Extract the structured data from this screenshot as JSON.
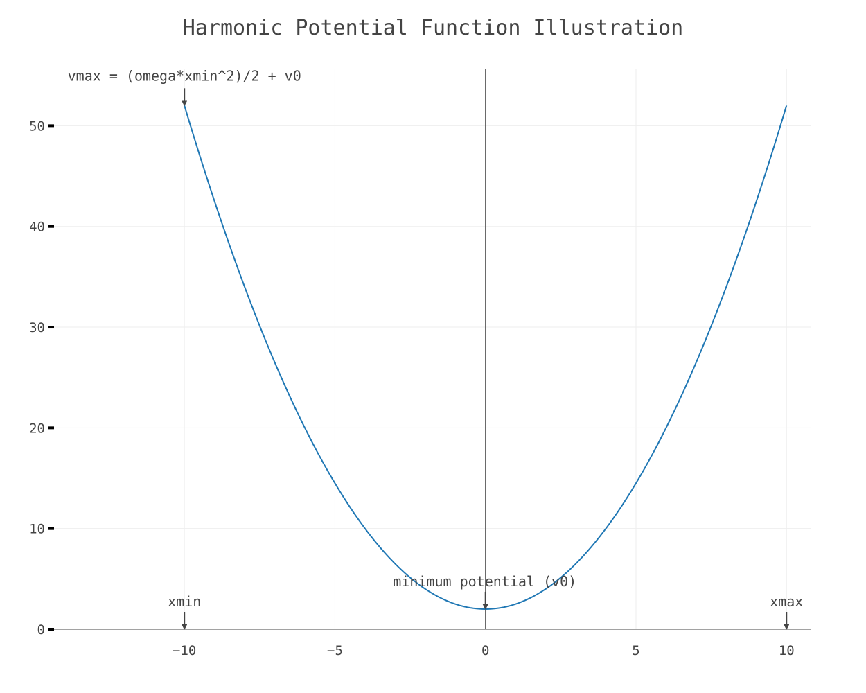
{
  "chart_data": {
    "type": "line",
    "title": "Harmonic Potential Function Illustration",
    "xlabel": "",
    "ylabel": "",
    "xlim": [
      -14.4,
      10.8
    ],
    "ylim": [
      0,
      55.6
    ],
    "grid": true,
    "x_ticks": [
      -10,
      -5,
      0,
      5,
      10
    ],
    "x_tick_labels": [
      "−10",
      "−5",
      "0",
      "5",
      "10"
    ],
    "y_ticks": [
      0,
      10,
      20,
      30,
      40,
      50
    ],
    "y_tick_labels": [
      "0",
      "10",
      "20",
      "30",
      "40",
      "50"
    ],
    "series": [
      {
        "color": "#1f77b4",
        "function": "v(x) = (omega*x^2)/2 + v0",
        "params": {
          "omega": 1,
          "v0": 2
        },
        "x_range": [
          -10,
          10
        ]
      }
    ],
    "vertical_line": {
      "x": 0,
      "color": "#444444"
    },
    "annotations": [
      {
        "id": "vmax",
        "text": "vmax = (omega*xmin^2)/2 + v0",
        "x": -10,
        "y": 52
      },
      {
        "id": "minimum",
        "text": "minimum potential (v0)",
        "x": 0,
        "y": 2
      },
      {
        "id": "xmin",
        "text": "xmin",
        "x": -10,
        "y": 0
      },
      {
        "id": "xmax",
        "text": "xmax",
        "x": 10,
        "y": 0
      }
    ]
  }
}
